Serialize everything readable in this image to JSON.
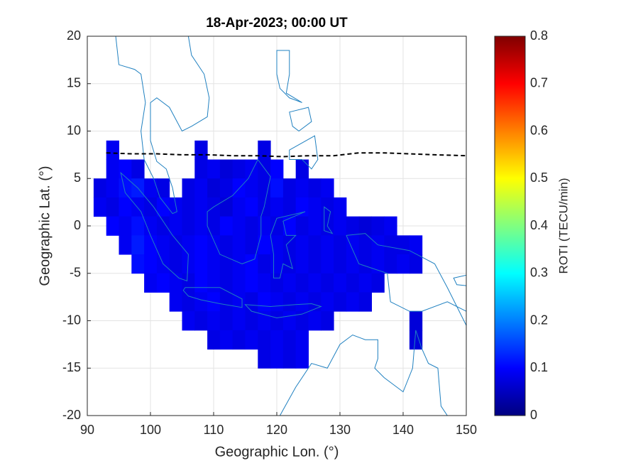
{
  "chart_data": {
    "type": "heatmap",
    "title": "18-Apr-2023; 00:00 UT",
    "x_label": "Geographic Lon. (°)",
    "y_label": "Geographic Lat. (°)",
    "xlim": [
      90,
      150
    ],
    "ylim": [
      -20,
      20
    ],
    "xticks": [
      90,
      100,
      110,
      120,
      130,
      140,
      150
    ],
    "yticks": [
      -20,
      -15,
      -10,
      -5,
      0,
      5,
      10,
      15,
      20
    ],
    "grid": true,
    "colormap": "jet",
    "colorbar": {
      "label": "ROTI (TECU/min)",
      "clim": [
        0,
        0.8
      ],
      "ticks": [
        0,
        0.1,
        0.2,
        0.3,
        0.4,
        0.5,
        0.6,
        0.7,
        0.8
      ]
    },
    "x": [
      94,
      108,
      118,
      94,
      96,
      98,
      108,
      110,
      112,
      114,
      116,
      118,
      120,
      124,
      92,
      94,
      96,
      98,
      100,
      102,
      106,
      108,
      110,
      112,
      114,
      116,
      118,
      120,
      122,
      124,
      126,
      128,
      92,
      94,
      96,
      98,
      100,
      102,
      104,
      106,
      108,
      110,
      112,
      114,
      116,
      118,
      120,
      122,
      124,
      126,
      128,
      130,
      94,
      96,
      98,
      100,
      102,
      104,
      106,
      108,
      110,
      112,
      114,
      116,
      118,
      120,
      122,
      124,
      126,
      128,
      130,
      132,
      134,
      136,
      138,
      96,
      98,
      100,
      102,
      104,
      106,
      108,
      110,
      112,
      114,
      116,
      118,
      120,
      122,
      124,
      126,
      128,
      130,
      132,
      134,
      136,
      138,
      140,
      142,
      98,
      100,
      102,
      104,
      106,
      108,
      110,
      112,
      114,
      116,
      118,
      120,
      122,
      124,
      126,
      128,
      130,
      132,
      134,
      136,
      138,
      140,
      142,
      100,
      102,
      104,
      106,
      108,
      110,
      112,
      114,
      116,
      118,
      120,
      122,
      124,
      126,
      128,
      130,
      132,
      134,
      136,
      104,
      106,
      108,
      110,
      112,
      114,
      116,
      118,
      120,
      122,
      124,
      126,
      128,
      130,
      132,
      134,
      106,
      108,
      110,
      112,
      114,
      116,
      118,
      120,
      122,
      124,
      126,
      128,
      142,
      110,
      112,
      114,
      116,
      118,
      120,
      122,
      124,
      142,
      118,
      120,
      122,
      124
    ],
    "y": [
      8,
      8,
      8,
      6,
      6,
      6,
      6,
      6,
      6,
      6,
      6,
      6,
      6,
      6,
      4,
      4,
      4,
      4,
      4,
      4,
      4,
      4,
      4,
      4,
      4,
      4,
      4,
      4,
      4,
      4,
      4,
      4,
      2,
      2,
      2,
      2,
      2,
      2,
      2,
      2,
      2,
      2,
      2,
      2,
      2,
      2,
      2,
      2,
      2,
      2,
      2,
      2,
      0,
      0,
      0,
      0,
      0,
      0,
      0,
      0,
      0,
      0,
      0,
      0,
      0,
      0,
      0,
      0,
      0,
      0,
      0,
      0,
      0,
      0,
      0,
      -2,
      -2,
      -2,
      -2,
      -2,
      -2,
      -2,
      -2,
      -2,
      -2,
      -2,
      -2,
      -2,
      -2,
      -2,
      -2,
      -2,
      -2,
      -2,
      -2,
      -2,
      -2,
      -2,
      -2,
      -4,
      -4,
      -4,
      -4,
      -4,
      -4,
      -4,
      -4,
      -4,
      -4,
      -4,
      -4,
      -4,
      -4,
      -4,
      -4,
      -4,
      -4,
      -4,
      -4,
      -4,
      -4,
      -4,
      -6,
      -6,
      -6,
      -6,
      -6,
      -6,
      -6,
      -6,
      -6,
      -6,
      -6,
      -6,
      -6,
      -6,
      -6,
      -6,
      -6,
      -6,
      -6,
      -8,
      -8,
      -8,
      -8,
      -8,
      -8,
      -8,
      -8,
      -8,
      -8,
      -8,
      -8,
      -8,
      -8,
      -8,
      -8,
      -10,
      -10,
      -10,
      -10,
      -10,
      -10,
      -10,
      -10,
      -10,
      -10,
      -10,
      -10,
      -10,
      -12,
      -12,
      -12,
      -12,
      -12,
      -12,
      -12,
      -12,
      -12,
      -14,
      -14,
      -14,
      -14
    ],
    "values": [
      0.09,
      0.08,
      0.08,
      0.09,
      0.1,
      0.08,
      0.08,
      0.09,
      0.07,
      0.08,
      0.09,
      0.08,
      0.1,
      0.08,
      0.08,
      0.09,
      0.11,
      0.12,
      0.09,
      0.08,
      0.08,
      0.09,
      0.07,
      0.08,
      0.1,
      0.09,
      0.08,
      0.11,
      0.08,
      0.09,
      0.08,
      0.09,
      0.09,
      0.08,
      0.1,
      0.09,
      0.08,
      0.1,
      0.09,
      0.08,
      0.09,
      0.08,
      0.07,
      0.09,
      0.1,
      0.08,
      0.09,
      0.08,
      0.1,
      0.09,
      0.08,
      0.09,
      0.1,
      0.09,
      0.11,
      0.09,
      0.08,
      0.09,
      0.08,
      0.09,
      0.08,
      0.1,
      0.09,
      0.08,
      0.09,
      0.08,
      0.1,
      0.08,
      0.09,
      0.08,
      0.09,
      0.08,
      0.07,
      0.08,
      0.09,
      0.09,
      0.12,
      0.1,
      0.09,
      0.08,
      0.09,
      0.1,
      0.09,
      0.08,
      0.09,
      0.08,
      0.1,
      0.09,
      0.08,
      0.09,
      0.08,
      0.09,
      0.08,
      0.09,
      0.08,
      0.09,
      0.08,
      0.08,
      0.09,
      0.11,
      0.1,
      0.09,
      0.08,
      0.09,
      0.1,
      0.09,
      0.08,
      0.09,
      0.1,
      0.08,
      0.09,
      0.08,
      0.09,
      0.08,
      0.09,
      0.08,
      0.09,
      0.08,
      0.09,
      0.08,
      0.09,
      0.08,
      0.09,
      0.1,
      0.09,
      0.08,
      0.1,
      0.09,
      0.08,
      0.09,
      0.1,
      0.09,
      0.08,
      0.09,
      0.08,
      0.09,
      0.08,
      0.09,
      0.08,
      0.09,
      0.08,
      0.09,
      0.08,
      0.09,
      0.1,
      0.08,
      0.09,
      0.08,
      0.1,
      0.09,
      0.08,
      0.09,
      0.08,
      0.09,
      0.08,
      0.09,
      0.08,
      0.09,
      0.08,
      0.09,
      0.08,
      0.09,
      0.08,
      0.09,
      0.08,
      0.09,
      0.08,
      0.09,
      0.08,
      0.07,
      0.08,
      0.09,
      0.08,
      0.09,
      0.08,
      0.09,
      0.08,
      0.09,
      0.07,
      0.08,
      0.09,
      0.08,
      0.09
    ],
    "contour": {
      "x": [
        93,
        97,
        101,
        105,
        109,
        113,
        117,
        121,
        125,
        129,
        133,
        137,
        141,
        145,
        150
      ],
      "y": [
        7.7,
        7.6,
        7.6,
        7.5,
        7.5,
        7.4,
        7.4,
        7.3,
        7.4,
        7.4,
        7.7,
        7.7,
        7.6,
        7.5,
        7.4
      ],
      "color": "#000000",
      "style": "dashed"
    }
  }
}
